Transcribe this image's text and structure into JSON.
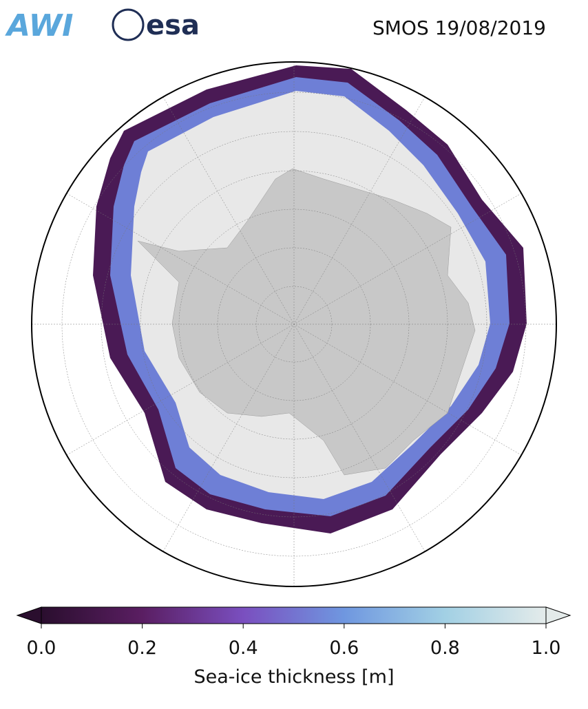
{
  "header": {
    "logos": [
      "AWI",
      "esa"
    ],
    "title": "SMOS 19/08/2019"
  },
  "colorbar": {
    "label": "Sea-ice thickness [m]",
    "lim": [
      0,
      1
    ],
    "ticks": [
      {
        "value": 0,
        "label": "0.0"
      },
      {
        "value": 0.2,
        "label": "0.2"
      },
      {
        "value": 0.4,
        "label": "0.4"
      },
      {
        "value": 0.6,
        "label": "0.6"
      },
      {
        "value": 0.8,
        "label": "0.8"
      },
      {
        "value": 1,
        "label": "1.0"
      }
    ],
    "colors": [
      "#2a0e2e",
      "#5a1e62",
      "#7a4fbf",
      "#6f97e0",
      "#a2d0e4",
      "#e4ebea"
    ]
  }
}
